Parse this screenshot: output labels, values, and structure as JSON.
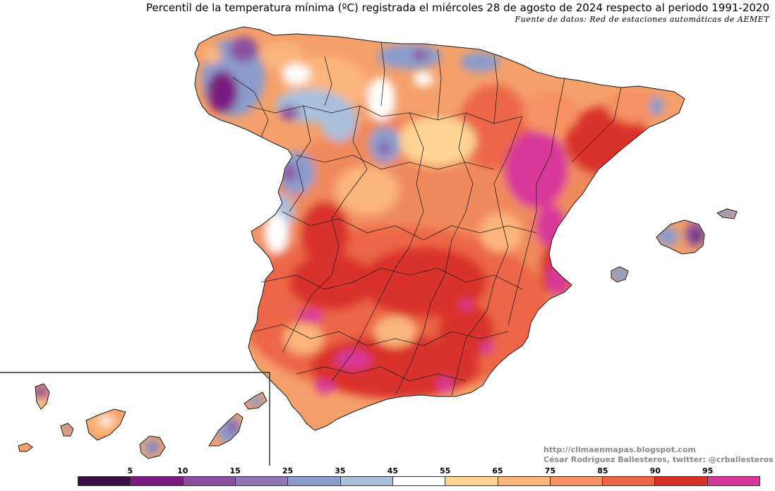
{
  "title": "Percentil de la temperatura mínima (ºC) registrada el miércoles 28 de agosto de 2024 respecto al periodo 1991-2020",
  "source": "Fuente de datos: Red de estaciones automáticas de AEMET",
  "credit": {
    "line1": "http://climaenmapas.blogspot.com",
    "line2": "César Rodríguez Ballesteros, twitter: @crballesteros"
  },
  "colors": {
    "background": "#ffffff",
    "border": "#1a1a1a",
    "land_base": "#f08a5d"
  },
  "legend": {
    "tick_labels": [
      "5",
      "10",
      "15",
      "25",
      "35",
      "45",
      "55",
      "65",
      "75",
      "85",
      "90",
      "95"
    ],
    "bins": [
      {
        "color": "#3b0f45"
      },
      {
        "color": "#7a1a7f"
      },
      {
        "color": "#8b4fa0"
      },
      {
        "color": "#8f77b5"
      },
      {
        "color": "#8a9ccc"
      },
      {
        "color": "#a9bfdc"
      },
      {
        "color": "#ffffff"
      },
      {
        "color": "#fdd494"
      },
      {
        "color": "#fbb57a"
      },
      {
        "color": "#f59162"
      },
      {
        "color": "#ec6646"
      },
      {
        "color": "#d9302a"
      },
      {
        "color": "#d8379a"
      }
    ]
  },
  "map": {
    "regions": [
      "Península Ibérica",
      "Islas Baleares",
      "Islas Canarias"
    ]
  }
}
